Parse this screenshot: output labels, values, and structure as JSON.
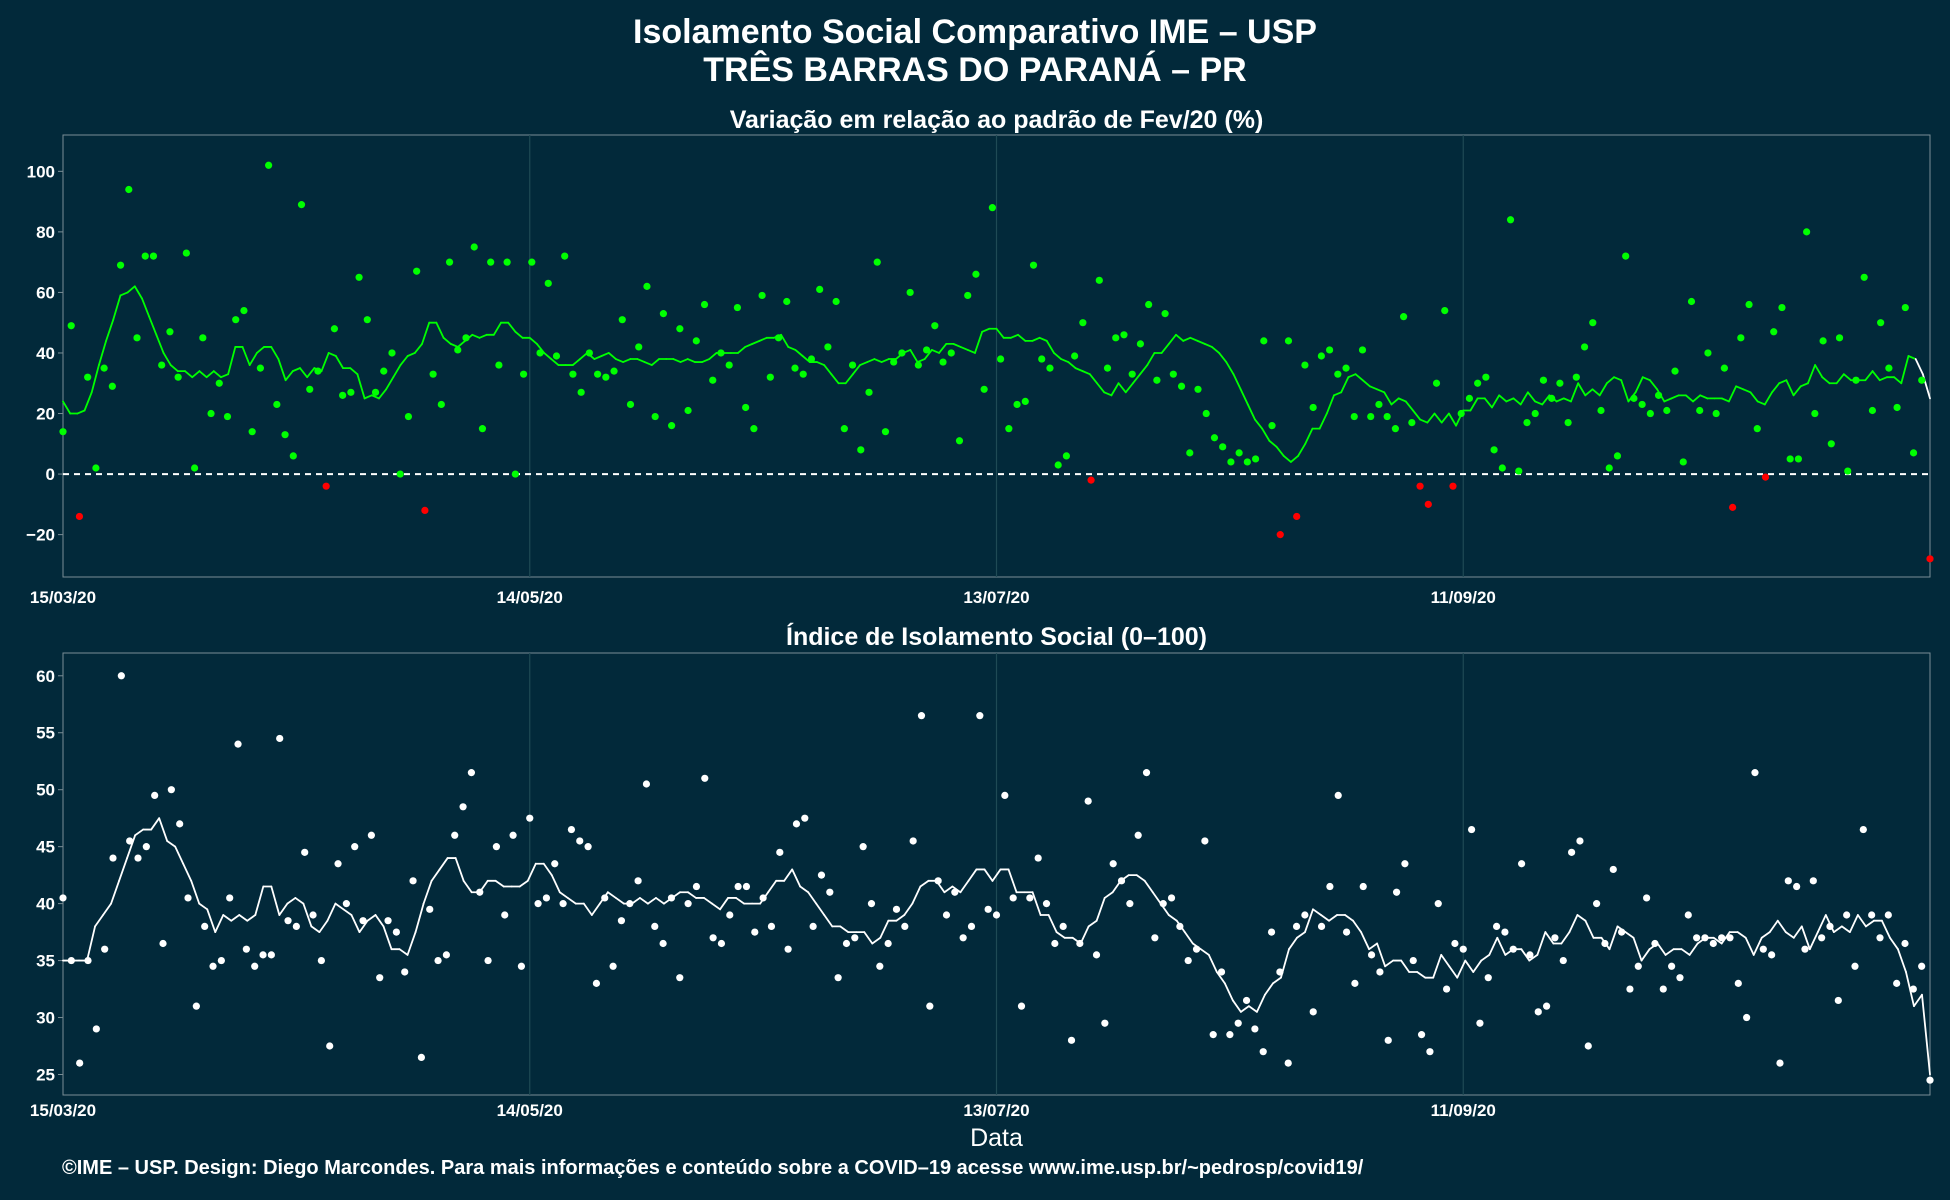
{
  "header": {
    "title": "Isolamento Social Comparativo IME – USP",
    "subtitle": "TRÊS BARRAS DO PARANÁ – PR"
  },
  "footer": {
    "credit": "©IME – USP. Design: Diego Marcondes. Para mais informações e conteúdo sobre a COVID–19 acesse www.ime.usp.br/~pedrosp/covid19/"
  },
  "colors": {
    "background": "#02293a",
    "panel_border": "#7a8d95",
    "grid": "#1f4a55",
    "positive": "#00ff00",
    "negative": "#ff0000",
    "index_series": "#ffffff"
  },
  "chart_data": [
    {
      "type": "scatter",
      "title": "Variação em relação ao padrão de Fev/20 (%)",
      "xlabel": "",
      "ylabel": "",
      "x_start": "15/03/20",
      "x_end": "10/11/20",
      "x_ticks": [
        "15/03/20",
        "14/05/20",
        "13/07/20",
        "11/09/20"
      ],
      "ylim": [
        -34,
        112
      ],
      "y_ticks": [
        -20,
        0,
        20,
        40,
        60,
        80,
        100
      ],
      "reference_line": 0,
      "grid": true,
      "colour_rule": "green when >= 0, red when < 0",
      "series": [
        {
          "kind": "points",
          "values": [
            14,
            49,
            -14,
            32,
            2,
            35,
            29,
            69,
            94,
            45,
            72,
            72,
            36,
            47,
            32,
            73,
            2,
            45,
            20,
            30,
            19,
            51,
            54,
            14,
            35,
            102,
            23,
            13,
            6,
            89,
            28,
            34,
            -4,
            48,
            26,
            27,
            65,
            51,
            27,
            34,
            40,
            0,
            19,
            67,
            -12,
            33,
            23,
            70,
            41,
            45,
            75,
            15,
            70,
            36,
            70,
            0,
            33,
            70,
            40,
            63,
            39,
            72,
            33,
            27,
            40,
            33,
            32,
            34,
            51,
            23,
            42,
            62,
            19,
            53,
            16,
            48,
            21,
            44,
            56,
            31,
            40,
            36,
            55,
            22,
            15,
            59,
            32,
            45,
            57,
            35,
            33,
            38,
            61,
            42,
            57,
            15,
            36,
            8,
            27,
            70,
            14,
            37,
            40,
            60,
            36,
            41,
            49,
            37,
            40,
            11,
            59,
            66,
            28,
            88,
            38,
            15,
            23,
            24,
            69,
            38,
            35,
            3,
            6,
            39,
            50,
            -2,
            64,
            35,
            45,
            46,
            33,
            43,
            56,
            31,
            53,
            33,
            29,
            7,
            28,
            20,
            12,
            9,
            4,
            7,
            4,
            5,
            44,
            16,
            -20,
            44,
            -14,
            36,
            22,
            39,
            41,
            33,
            35,
            19,
            41,
            19,
            23,
            19,
            15,
            52,
            17,
            -4,
            -10,
            30,
            54,
            -4,
            20,
            25,
            30,
            32,
            8,
            2,
            84,
            1,
            17,
            20,
            31,
            25,
            30,
            17,
            32,
            42,
            50,
            21,
            2,
            6,
            72,
            25,
            23,
            20,
            26,
            21,
            34,
            4,
            57,
            21,
            40,
            20,
            35,
            -11,
            45,
            56,
            15,
            -1,
            47,
            55,
            5,
            5,
            80,
            20,
            44,
            10,
            45,
            1,
            31,
            65,
            21,
            50,
            35,
            22,
            55,
            7,
            31,
            -28
          ]
        },
        {
          "kind": "moving_average",
          "values": [
            24,
            20,
            20,
            21,
            27,
            36,
            44,
            51,
            59,
            60,
            62,
            58,
            52,
            46,
            40,
            36,
            34,
            34,
            32,
            34,
            32,
            34,
            32,
            33,
            42,
            42,
            36,
            40,
            42,
            42,
            38,
            31,
            34,
            35,
            32,
            35,
            34,
            40,
            39,
            35,
            35,
            33,
            25,
            26,
            25,
            28,
            32,
            36,
            39,
            40,
            43,
            50,
            50,
            45,
            43,
            42,
            44,
            46,
            45,
            46,
            46,
            50,
            50,
            47,
            45,
            45,
            43,
            40,
            38,
            36,
            36,
            36,
            38,
            40,
            38,
            39,
            40,
            38,
            37,
            38,
            38,
            37,
            36,
            38,
            38,
            38,
            37,
            38,
            37,
            37,
            38,
            40,
            40,
            40,
            40,
            42,
            43,
            44,
            45,
            45,
            46,
            42,
            41,
            39,
            37,
            37,
            36,
            33,
            30,
            30,
            33,
            36,
            37,
            38,
            37,
            38,
            38,
            40,
            41,
            37,
            38,
            41,
            40,
            43,
            43,
            42,
            41,
            40,
            47,
            48,
            48,
            45,
            45,
            46,
            44,
            44,
            45,
            44,
            40,
            38,
            37,
            35,
            34,
            33,
            30,
            27,
            26,
            30,
            27,
            30,
            33,
            36,
            40,
            40,
            43,
            46,
            44,
            45,
            44,
            43,
            42,
            40,
            37,
            33,
            28,
            23,
            18,
            15,
            11,
            9,
            6,
            4,
            6,
            10,
            15,
            15,
            20,
            26,
            27,
            32,
            33,
            31,
            29,
            28,
            27,
            23,
            25,
            24,
            21,
            18,
            17,
            20,
            17,
            20,
            16,
            21,
            21,
            25,
            25,
            22,
            26,
            24,
            25,
            23,
            27,
            24,
            23,
            26,
            24,
            25,
            24,
            30,
            26,
            28,
            26,
            30,
            32,
            31,
            24,
            27,
            32,
            31,
            28,
            24,
            25,
            26,
            26,
            24,
            26,
            25,
            25,
            25,
            24,
            29,
            28,
            27,
            24,
            23,
            27,
            30,
            31,
            26,
            29,
            30,
            36,
            32,
            30,
            30,
            33,
            31,
            31,
            31,
            34,
            31,
            32,
            32,
            30,
            39,
            38,
            33,
            25
          ]
        }
      ]
    },
    {
      "type": "scatter",
      "title": "Índice de Isolamento Social (0–100)",
      "xlabel": "Data",
      "ylabel": "",
      "x_start": "15/03/20",
      "x_end": "10/11/20",
      "x_ticks": [
        "15/03/20",
        "14/05/20",
        "13/07/20",
        "11/09/20"
      ],
      "ylim": [
        23.2,
        62
      ],
      "y_ticks": [
        25,
        30,
        35,
        40,
        45,
        50,
        55,
        60
      ],
      "grid": true,
      "series": [
        {
          "kind": "points",
          "values": [
            40.5,
            35,
            26,
            35,
            29,
            36,
            44,
            60,
            45.5,
            44,
            45,
            49.5,
            36.5,
            50,
            47,
            40.5,
            31,
            38,
            34.5,
            35,
            40.5,
            54,
            36,
            34.5,
            35.5,
            35.5,
            54.5,
            38.5,
            38,
            44.5,
            39,
            35,
            27.5,
            43.5,
            40,
            45,
            38.5,
            46,
            33.5,
            38.5,
            37.5,
            34,
            42,
            26.5,
            39.5,
            35,
            35.5,
            46,
            48.5,
            51.5,
            41,
            35,
            45,
            39,
            46,
            34.5,
            47.5,
            40,
            40.5,
            43.5,
            40,
            46.5,
            45.5,
            45,
            33,
            40.5,
            34.5,
            38.5,
            40,
            42,
            50.5,
            38,
            36.5,
            40.5,
            33.5,
            40,
            41.5,
            51,
            37,
            36.5,
            39,
            41.5,
            41.5,
            37.5,
            40.5,
            38,
            44.5,
            36,
            47,
            47.5,
            38,
            42.5,
            41,
            33.5,
            36.5,
            37,
            45,
            40,
            34.5,
            36.5,
            39.5,
            38,
            45.5,
            56.5,
            31,
            42,
            39,
            41,
            37,
            38,
            56.5,
            39.5,
            39,
            49.5,
            40.5,
            31,
            40.5,
            44,
            40,
            36.5,
            38,
            28,
            36.5,
            49,
            35.5,
            29.5,
            43.5,
            42,
            40,
            46,
            51.5,
            37,
            40,
            40.5,
            38,
            35,
            36,
            45.5,
            28.5,
            34,
            28.5,
            29.5,
            31.5,
            29,
            27,
            37.5,
            34,
            26,
            38,
            39,
            30.5,
            38,
            41.5,
            49.5,
            37.5,
            33,
            41.5,
            35.5,
            34,
            28,
            41,
            43.5,
            35,
            28.5,
            27,
            40,
            32.5,
            36.5,
            36,
            46.5,
            29.5,
            33.5,
            38,
            37.5,
            36,
            43.5,
            35.5,
            30.5,
            31,
            37,
            35,
            44.5,
            45.5,
            27.5,
            40,
            36.5,
            43,
            37.5,
            32.5,
            34.5,
            40.5,
            36.5,
            32.5,
            34.5,
            33.5,
            39,
            37,
            37,
            36.5,
            37,
            37,
            33,
            30,
            51.5,
            36,
            35.5,
            26,
            42,
            41.5,
            36,
            42,
            37,
            38,
            31.5,
            39,
            34.5,
            46.5,
            39,
            37,
            39,
            33,
            36.5,
            32.5,
            34.5,
            24.5
          ]
        },
        {
          "kind": "moving_average",
          "values": [
            35,
            35,
            35,
            35,
            38,
            39,
            40,
            42,
            44,
            46,
            46.5,
            46.5,
            47.5,
            45.5,
            45,
            43.5,
            42,
            40,
            39.5,
            37.5,
            39,
            38.5,
            39,
            38.5,
            39,
            41.5,
            41.5,
            39,
            40,
            40.5,
            40,
            38,
            37.5,
            38.5,
            40,
            39.5,
            39,
            37.5,
            38.5,
            39,
            38,
            36,
            36,
            35.5,
            37.5,
            40,
            42,
            43,
            44,
            44,
            42,
            41,
            41,
            42,
            42,
            41.5,
            41.5,
            41.5,
            42,
            43.5,
            43.5,
            42.5,
            41,
            40.5,
            40,
            40,
            39,
            40,
            41,
            40.5,
            40,
            40,
            40.5,
            40,
            40.5,
            40,
            40.5,
            41,
            41,
            40.5,
            40.5,
            40,
            39.5,
            40.5,
            40.5,
            40,
            40,
            40,
            41,
            42,
            42,
            43,
            41.5,
            41,
            40,
            39,
            38,
            38,
            37.5,
            37.5,
            37.5,
            36.5,
            37,
            38.5,
            38.5,
            39,
            40,
            41.5,
            42,
            42,
            41,
            41.5,
            41,
            42,
            43,
            43,
            42,
            43,
            43,
            41,
            41,
            41,
            39,
            39,
            37.5,
            37,
            37,
            36.5,
            38,
            38.5,
            40.5,
            41,
            42,
            42.5,
            42.5,
            42,
            41,
            40,
            39,
            38.5,
            37.5,
            36.5,
            36,
            35.5,
            34,
            33,
            31.5,
            30.5,
            31,
            30.5,
            32,
            33,
            33.5,
            36,
            37,
            37.5,
            39.5,
            39,
            38.5,
            39,
            39,
            38.5,
            37.5,
            36,
            36.5,
            34.5,
            35,
            35,
            34,
            34,
            33.5,
            33.5,
            35.5,
            34.5,
            33.5,
            35,
            34,
            35,
            35.5,
            37,
            35.5,
            36,
            36,
            35,
            35.5,
            37.5,
            36.5,
            36.5,
            37.5,
            39,
            38.5,
            37,
            37,
            36,
            38,
            37.5,
            37,
            35,
            36,
            36.5,
            35.5,
            36,
            36,
            35.5,
            36.5,
            37,
            37,
            36.5,
            37.5,
            37.5,
            37,
            35.5,
            37,
            37.5,
            38.5,
            37.5,
            37,
            38,
            36,
            37.5,
            39,
            37.5,
            38,
            37.5,
            39,
            38,
            38.5,
            38.5,
            37,
            36,
            34,
            31,
            32,
            25
          ]
        }
      ]
    }
  ]
}
